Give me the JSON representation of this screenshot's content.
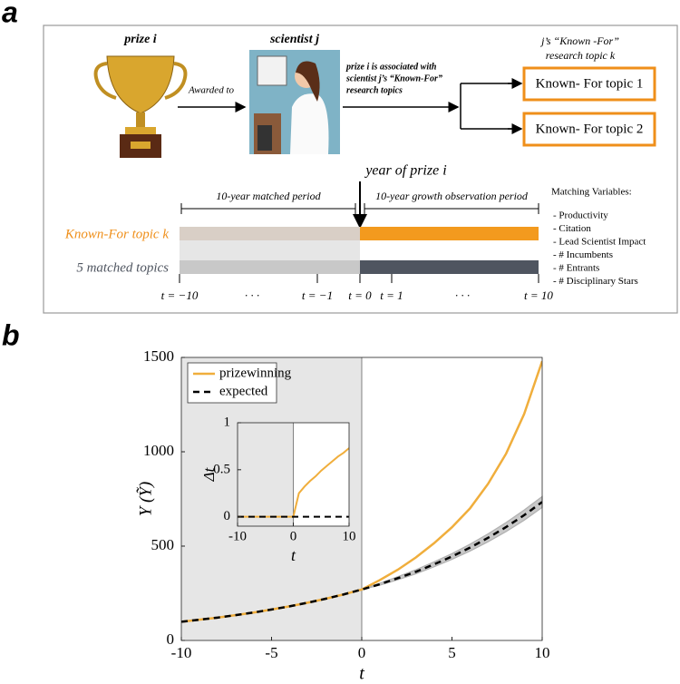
{
  "panel_a": {
    "label": "a",
    "prize_label": "prize i",
    "scientist_label": "scientist j",
    "awarded_to": "Awarded to",
    "association_note": [
      "prize i is associated with",
      "scientist j’s “Known-For”",
      "research topics"
    ],
    "known_for_header": [
      "j’s “Known -For”",
      "research topic k"
    ],
    "topics": [
      "Known- For topic 1",
      "Known- For topic 2"
    ],
    "year_of_prize": "year of prize i",
    "matched_period": "10-year matched period",
    "growth_period": "10-year growth observation period",
    "row_labels": [
      "Known-For topic k",
      "5 matched topics"
    ],
    "matching_title": "Matching Variables:",
    "matching_variables": [
      "- Productivity",
      "- Citation",
      "- Lead Scientist Impact",
      "- # Incumbents",
      "- # Entrants",
      "- # Disciplinary Stars"
    ],
    "timeline_ticks": [
      "t = −10",
      "· · ·",
      "t = −1",
      "t = 0",
      "t = 1",
      "· · ·",
      "t = 10"
    ]
  },
  "panel_b_label": "b",
  "chart_data": [
    {
      "type": "line",
      "xlabel": "t",
      "ylabel": "Y (Ỹ)",
      "x": [
        -10,
        -9,
        -8,
        -7,
        -6,
        -5,
        -4,
        -3,
        -2,
        -1,
        0,
        1,
        2,
        3,
        4,
        5,
        6,
        7,
        8,
        9,
        10
      ],
      "series": [
        {
          "name": "prizewinning",
          "color": "#f0ae3c",
          "dash": false,
          "values": [
            99,
            110,
            121,
            134,
            148,
            164,
            181,
            200,
            221,
            244,
            270,
            320,
            375,
            440,
            515,
            600,
            700,
            830,
            990,
            1200,
            1480
          ]
        },
        {
          "name": "expected",
          "color": "#000000",
          "dash": true,
          "values": [
            99,
            110,
            121,
            134,
            148,
            164,
            181,
            200,
            221,
            244,
            270,
            298,
            330,
            364,
            403,
            445,
            492,
            544,
            601,
            664,
            734
          ]
        }
      ],
      "band": {
        "color": "#c8c8c8",
        "lower": [
          null,
          null,
          null,
          null,
          null,
          null,
          null,
          null,
          null,
          null,
          270,
          293,
          322,
          353,
          390,
          430,
          474,
          523,
          577,
          637,
          705
        ],
        "upper": [
          null,
          null,
          null,
          null,
          null,
          null,
          null,
          null,
          null,
          null,
          270,
          303,
          338,
          375,
          416,
          460,
          510,
          565,
          625,
          691,
          763
        ]
      },
      "shaded_region": [
        -10,
        0
      ],
      "xlim": [
        -10,
        10
      ],
      "xticks": [
        -10,
        -5,
        0,
        5,
        10
      ],
      "ylim": [
        0,
        1500
      ],
      "yticks": [
        0,
        500,
        1000,
        1500
      ],
      "legend": "upper left"
    },
    {
      "type": "line",
      "xlabel": "t",
      "ylabel": "Δt",
      "x": [
        -10,
        -9,
        -8,
        -7,
        -6,
        -5,
        -4,
        -3,
        -2,
        -1,
        0,
        1,
        2,
        3,
        4,
        5,
        6,
        7,
        8,
        9,
        10
      ],
      "series": [
        {
          "name": "prizewinning",
          "color": "#f0ae3c",
          "dash": false,
          "values": [
            0,
            0,
            0,
            0,
            0,
            0,
            0,
            0,
            0,
            0,
            0,
            0.25,
            0.32,
            0.38,
            0.43,
            0.49,
            0.54,
            0.59,
            0.64,
            0.68,
            0.73
          ]
        },
        {
          "name": "expected",
          "color": "#000000",
          "dash": true,
          "values": [
            0,
            0,
            0,
            0,
            0,
            0,
            0,
            0,
            0,
            0,
            0,
            0,
            0,
            0,
            0,
            0,
            0,
            0,
            0,
            0,
            0
          ]
        }
      ],
      "shaded_region": [
        -10,
        0
      ],
      "xlim": [
        -10,
        10
      ],
      "xticks": [
        -10,
        0,
        10
      ],
      "ylim": [
        -0.1,
        1
      ],
      "yticks": [
        0,
        0.5,
        1
      ]
    }
  ]
}
